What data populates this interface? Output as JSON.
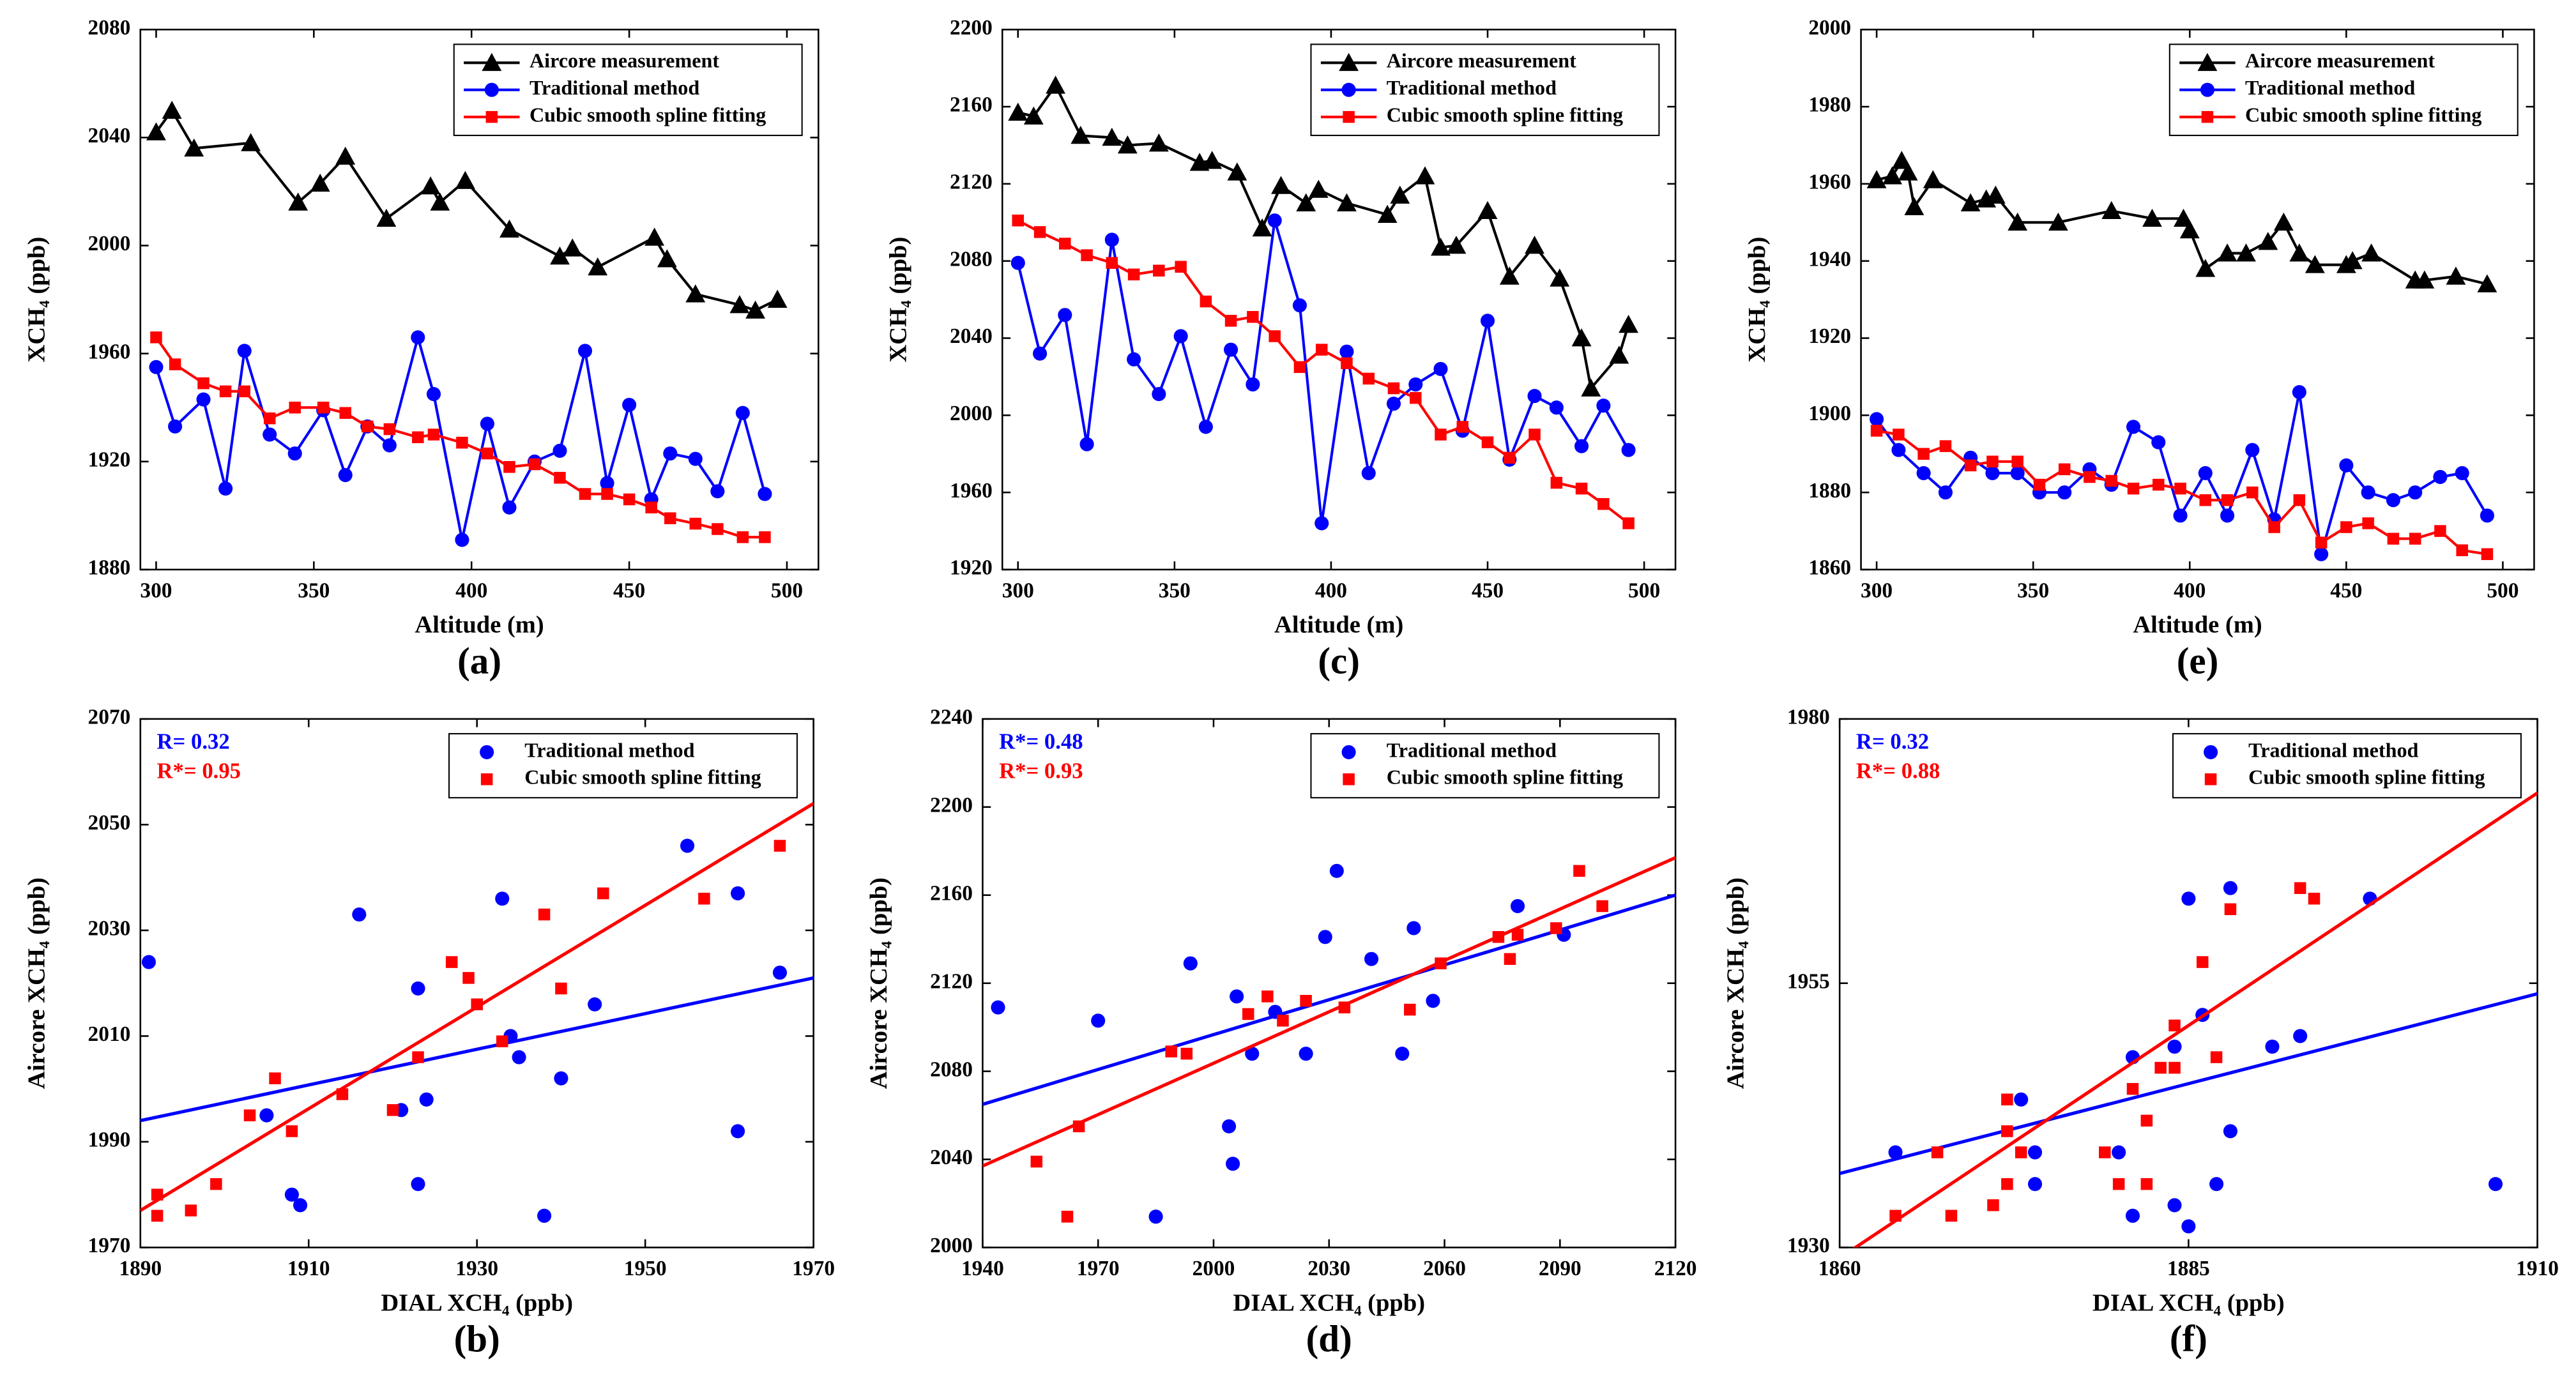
{
  "chart_data": [
    {
      "type": "line",
      "label": "(a)",
      "xlabel": "Altitude (m)",
      "ylabel": "XCH₄ (ppb)",
      "xlim": [
        295,
        510
      ],
      "xticks": [
        300,
        350,
        400,
        450,
        500
      ],
      "ylim": [
        1880,
        2080
      ],
      "yticks": [
        1880,
        1920,
        1960,
        2000,
        2040,
        2080
      ],
      "series": [
        {
          "name": "Aircore measurement",
          "color": "#000000",
          "marker": "triangle",
          "x": [
            300,
            305,
            312,
            330,
            345,
            352,
            360,
            373,
            387,
            390,
            398,
            412,
            428,
            432,
            440,
            458,
            462,
            471,
            485,
            490,
            497
          ],
          "values": [
            2042,
            2050,
            2036,
            2038,
            2016,
            2023,
            2033,
            2010,
            2022,
            2016,
            2024,
            2006,
            1996,
            1999,
            1992,
            2003,
            1995,
            1982,
            1978,
            1976,
            1980
          ]
        },
        {
          "name": "Traditional method",
          "color": "#0000ff",
          "marker": "circle",
          "x": [
            300,
            306,
            315,
            322,
            328,
            336,
            344,
            353,
            360,
            367,
            374,
            383,
            388,
            397,
            405,
            412,
            420,
            428,
            436,
            443,
            450,
            457,
            463,
            471,
            478,
            486,
            493
          ],
          "values": [
            1955,
            1933,
            1943,
            1910,
            1961,
            1930,
            1923,
            1939,
            1915,
            1933,
            1926,
            1966,
            1945,
            1891,
            1934,
            1903,
            1920,
            1924,
            1961,
            1912,
            1941,
            1906,
            1923,
            1921,
            1909,
            1938,
            1908
          ]
        },
        {
          "name": "Cubic smooth spline fitting",
          "color": "#ff0000",
          "marker": "square",
          "x": [
            300,
            306,
            315,
            322,
            328,
            336,
            344,
            353,
            360,
            367,
            374,
            383,
            388,
            397,
            405,
            412,
            420,
            428,
            436,
            443,
            450,
            457,
            463,
            471,
            478,
            486,
            493
          ],
          "values": [
            1966,
            1956,
            1949,
            1946,
            1946,
            1936,
            1940,
            1940,
            1938,
            1933,
            1932,
            1929,
            1930,
            1927,
            1923,
            1918,
            1919,
            1914,
            1908,
            1908,
            1906,
            1903,
            1899,
            1897,
            1895,
            1892,
            1892
          ]
        }
      ]
    },
    {
      "type": "scatter",
      "label": "(b)",
      "xlabel": "DIAL XCH₄ (ppb)",
      "ylabel": "Aircore XCH₄ (ppb)",
      "xlim": [
        1890,
        1970
      ],
      "xticks": [
        1890,
        1910,
        1930,
        1950,
        1970
      ],
      "ylim": [
        1970,
        2070
      ],
      "yticks": [
        1970,
        1990,
        2010,
        2030,
        2050,
        2070
      ],
      "annotations": [
        {
          "text": "R= 0.32",
          "color": "#0000ff"
        },
        {
          "text": "R*= 0.95",
          "color": "#ff0000"
        }
      ],
      "series": [
        {
          "name": "Traditional method",
          "color": "#0000ff",
          "marker": "circle",
          "x": [
            1891,
            1905,
            1908,
            1909,
            1916,
            1921,
            1923,
            1923,
            1924,
            1933,
            1934,
            1935,
            1938,
            1940,
            1944,
            1955,
            1961,
            1961,
            1966
          ],
          "values": [
            2024,
            1995,
            1980,
            1978,
            2033,
            1996,
            2019,
            1982,
            1998,
            2036,
            2010,
            2006,
            1976,
            2002,
            2016,
            2046,
            2037,
            1992,
            2022
          ],
          "fit": {
            "x": [
              1890,
              1970
            ],
            "values": [
              1994,
              2021
            ]
          }
        },
        {
          "name": "Cubic smooth spline fitting",
          "color": "#ff0000",
          "marker": "square",
          "x": [
            1892,
            1892,
            1896,
            1899,
            1903,
            1906,
            1908,
            1914,
            1920,
            1923,
            1927,
            1929,
            1930,
            1933,
            1938,
            1940,
            1945,
            1957,
            1966
          ],
          "values": [
            1980,
            1976,
            1977,
            1982,
            1995,
            2002,
            1992,
            1999,
            1996,
            2006,
            2024,
            2021,
            2016,
            2009,
            2033,
            2019,
            2037,
            2036,
            2046
          ],
          "fit": {
            "x": [
              1890,
              1970
            ],
            "values": [
              1977,
              2054
            ]
          }
        }
      ]
    },
    {
      "type": "line",
      "label": "(c)",
      "xlabel": "Altitude (m)",
      "ylabel": "XCH₄ (ppb)",
      "xlim": [
        295,
        510
      ],
      "xticks": [
        300,
        350,
        400,
        450,
        500
      ],
      "ylim": [
        1920,
        2200
      ],
      "yticks": [
        1920,
        1960,
        2000,
        2040,
        2080,
        2120,
        2160,
        2200
      ],
      "series": [
        {
          "name": "Aircore measurement",
          "color": "#000000",
          "marker": "triangle",
          "x": [
            300,
            305,
            312,
            320,
            330,
            335,
            345,
            358,
            362,
            370,
            378,
            384,
            392,
            396,
            405,
            418,
            422,
            430,
            435,
            440,
            450,
            457,
            465,
            473,
            480,
            483,
            492,
            495
          ],
          "values": [
            2157,
            2155,
            2171,
            2145,
            2144,
            2140,
            2141,
            2131,
            2132,
            2126,
            2097,
            2119,
            2110,
            2117,
            2110,
            2104,
            2114,
            2124,
            2087,
            2088,
            2106,
            2072,
            2088,
            2071,
            2040,
            2014,
            2031,
            2047
          ]
        },
        {
          "name": "Traditional method",
          "color": "#0000ff",
          "marker": "circle",
          "x": [
            300,
            307,
            315,
            322,
            330,
            337,
            345,
            352,
            360,
            368,
            375,
            382,
            390,
            397,
            405,
            412,
            420,
            427,
            435,
            442,
            450,
            457,
            465,
            472,
            480,
            487,
            495
          ],
          "values": [
            2079,
            2032,
            2052,
            1985,
            2091,
            2029,
            2011,
            2041,
            1994,
            2034,
            2016,
            2101,
            2057,
            1944,
            2033,
            1970,
            2006,
            2016,
            2024,
            1992,
            2049,
            1977,
            2010,
            2004,
            1984,
            2005,
            1982
          ]
        },
        {
          "name": "Cubic smooth spline fitting",
          "color": "#ff0000",
          "marker": "square",
          "x": [
            300,
            307,
            315,
            322,
            330,
            337,
            345,
            352,
            360,
            368,
            375,
            382,
            390,
            397,
            405,
            412,
            420,
            427,
            435,
            442,
            450,
            457,
            465,
            472,
            480,
            487,
            495
          ],
          "values": [
            2101,
            2095,
            2089,
            2083,
            2079,
            2073,
            2075,
            2077,
            2059,
            2049,
            2051,
            2041,
            2025,
            2034,
            2027,
            2019,
            2014,
            2009,
            1990,
            1994,
            1986,
            1978,
            1990,
            1965,
            1962,
            1954,
            1944
          ]
        }
      ]
    },
    {
      "type": "scatter",
      "label": "(d)",
      "xlabel": "DIAL XCH₄ (ppb)",
      "ylabel": "Aircore XCH₄ (ppb)",
      "xlim": [
        1940,
        2120
      ],
      "xticks": [
        1940,
        1970,
        2000,
        2030,
        2060,
        2090,
        2120
      ],
      "ylim": [
        2000,
        2240
      ],
      "yticks": [
        2000,
        2040,
        2080,
        2120,
        2160,
        2200,
        2240
      ],
      "annotations": [
        {
          "text": "R*= 0.48",
          "color": "#0000ff"
        },
        {
          "text": "R*= 0.93",
          "color": "#ff0000"
        }
      ],
      "series": [
        {
          "name": "Traditional method",
          "color": "#0000ff",
          "marker": "circle",
          "x": [
            1944,
            1970,
            1985,
            1994,
            2004,
            2005,
            2006,
            2010,
            2016,
            2024,
            2029,
            2032,
            2041,
            2049,
            2052,
            2057,
            2079,
            2091
          ],
          "values": [
            2109,
            2103,
            2014,
            2129,
            2055,
            2038,
            2114,
            2088,
            2107,
            2088,
            2141,
            2171,
            2131,
            2088,
            2145,
            2112,
            2155,
            2142
          ],
          "fit": {
            "x": [
              1940,
              2120
            ],
            "values": [
              2065,
              2160
            ]
          }
        },
        {
          "name": "Cubic smooth spline fitting",
          "color": "#ff0000",
          "marker": "square",
          "x": [
            1954,
            1962,
            1965,
            1989,
            1993,
            2009,
            2014,
            2018,
            2024,
            2034,
            2051,
            2059,
            2074,
            2077,
            2079,
            2089,
            2095,
            2101
          ],
          "values": [
            2039,
            2014,
            2055,
            2089,
            2088,
            2106,
            2114,
            2103,
            2112,
            2109,
            2108,
            2129,
            2141,
            2131,
            2142,
            2145,
            2171,
            2155
          ],
          "fit": {
            "x": [
              1940,
              2120
            ],
            "values": [
              2037,
              2177
            ]
          }
        }
      ]
    },
    {
      "type": "line",
      "label": "(e)",
      "xlabel": "Altitude (m)",
      "ylabel": "XCH₄ (ppb)",
      "xlim": [
        295,
        510
      ],
      "xticks": [
        300,
        350,
        400,
        450,
        500
      ],
      "ylim": [
        1860,
        2000
      ],
      "yticks": [
        1860,
        1880,
        1900,
        1920,
        1940,
        1960,
        1980,
        2000
      ],
      "series": [
        {
          "name": "Aircore measurement",
          "color": "#000000",
          "marker": "triangle",
          "x": [
            300,
            305,
            308,
            310,
            312,
            318,
            330,
            335,
            338,
            345,
            358,
            375,
            388,
            398,
            400,
            405,
            412,
            418,
            425,
            430,
            435,
            440,
            450,
            452,
            458,
            472,
            475,
            485,
            495
          ],
          "values": [
            1961,
            1962,
            1966,
            1963,
            1954,
            1961,
            1955,
            1956,
            1957,
            1950,
            1950,
            1953,
            1951,
            1951,
            1948,
            1938,
            1942,
            1942,
            1945,
            1950,
            1942,
            1939,
            1939,
            1940,
            1942,
            1935,
            1935,
            1936,
            1934
          ]
        },
        {
          "name": "Traditional method",
          "color": "#0000ff",
          "marker": "circle",
          "x": [
            300,
            307,
            315,
            322,
            330,
            337,
            345,
            352,
            360,
            368,
            375,
            382,
            390,
            397,
            405,
            412,
            420,
            427,
            435,
            442,
            450,
            457,
            465,
            472,
            480,
            487,
            495
          ],
          "values": [
            1899,
            1891,
            1885,
            1880,
            1889,
            1885,
            1885,
            1880,
            1880,
            1886,
            1882,
            1897,
            1893,
            1874,
            1885,
            1874,
            1891,
            1873,
            1906,
            1864,
            1887,
            1880,
            1878,
            1880,
            1884,
            1885,
            1874
          ]
        },
        {
          "name": "Cubic smooth spline fitting",
          "color": "#ff0000",
          "marker": "square",
          "x": [
            300,
            307,
            315,
            322,
            330,
            337,
            345,
            352,
            360,
            368,
            375,
            382,
            390,
            397,
            405,
            412,
            420,
            427,
            435,
            442,
            450,
            457,
            465,
            472,
            480,
            487,
            495
          ],
          "values": [
            1896,
            1895,
            1890,
            1892,
            1887,
            1888,
            1888,
            1882,
            1886,
            1884,
            1883,
            1881,
            1882,
            1881,
            1878,
            1878,
            1880,
            1871,
            1878,
            1867,
            1871,
            1872,
            1868,
            1868,
            1870,
            1865,
            1864
          ]
        }
      ]
    },
    {
      "type": "scatter",
      "label": "(f)",
      "xlabel": "DIAL XCH₄ (ppb)",
      "ylabel": "Aircore XCH₄ (ppb)",
      "xlim": [
        1860,
        1910
      ],
      "xticks": [
        1860,
        1885,
        1910
      ],
      "ylim": [
        1930,
        1980
      ],
      "yticks": [
        1930,
        1955,
        1980
      ],
      "annotations": [
        {
          "text": "R= 0.32",
          "color": "#0000ff"
        },
        {
          "text": "R*= 0.88",
          "color": "#ff0000"
        }
      ],
      "series": [
        {
          "name": "Traditional method",
          "color": "#0000ff",
          "marker": "circle",
          "x": [
            1864,
            1873,
            1874,
            1874,
            1880,
            1881,
            1881,
            1884,
            1884,
            1885,
            1885,
            1886,
            1887,
            1888,
            1888,
            1891,
            1893,
            1898,
            1907
          ],
          "values": [
            1939,
            1944,
            1936,
            1939,
            1939,
            1948,
            1933,
            1934,
            1949,
            1963,
            1932,
            1952,
            1936,
            1941,
            1964,
            1949,
            1950,
            1963,
            1936
          ],
          "fit": {
            "x": [
              1860,
              1910
            ],
            "values": [
              1937,
              1954
            ]
          }
        },
        {
          "name": "Cubic smooth spline fitting",
          "color": "#ff0000",
          "marker": "square",
          "x": [
            1864,
            1867,
            1868,
            1871,
            1872,
            1872,
            1872,
            1873,
            1879,
            1880,
            1881,
            1882,
            1883,
            1882,
            1884,
            1884,
            1886,
            1887,
            1888,
            1893,
            1894
          ],
          "values": [
            1933,
            1939,
            1933,
            1934,
            1944,
            1936,
            1941,
            1939,
            1939,
            1936,
            1945,
            1942,
            1947,
            1936,
            1947,
            1951,
            1957,
            1948,
            1962,
            1964,
            1963
          ],
          "fit": {
            "x": [
              1860,
              1910
            ],
            "values": [
              1929,
              1973
            ]
          }
        }
      ]
    }
  ]
}
